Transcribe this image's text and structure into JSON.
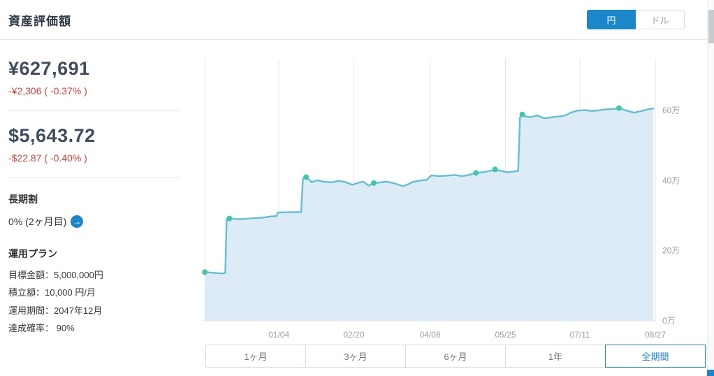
{
  "header": {
    "title": "資産評価額",
    "currency_toggle": {
      "options": [
        "円",
        "ドル"
      ],
      "active": "円"
    }
  },
  "summary": {
    "yen_value": "¥627,691",
    "yen_change": "-¥2,306 ( -0.37% )",
    "usd_value": "$5,643.72",
    "usd_change": "-$22.87 ( -0.40% )"
  },
  "long_term": {
    "heading": "長期割",
    "status": "0% (2ヶ月目)",
    "arrow_icon": "→"
  },
  "plan": {
    "heading": "運用プラン",
    "items": [
      "目標金額：5,000,000円",
      "積立額：10,000 円/月",
      "運用期間：2047年12月",
      "達成確率： 90%"
    ]
  },
  "period_buttons": {
    "options": [
      "1ヶ月",
      "3ヶ月",
      "6ヶ月",
      "1年",
      "全期間"
    ],
    "selected": "全期間"
  },
  "colors": {
    "accent": "#1b87c9",
    "negative": "#e0413a",
    "line": "#5fc0d6",
    "area": "#dcebf5",
    "dot": "#3fc6ad",
    "grid": "#e4e7e9",
    "axis_text": "#9aa1a9"
  },
  "chart_data": {
    "type": "area",
    "unit": "万",
    "ylim": [
      0,
      75
    ],
    "yticks": [
      {
        "value": 0,
        "label": "0万"
      },
      {
        "value": 20,
        "label": "20万"
      },
      {
        "value": 40,
        "label": "40万"
      },
      {
        "value": 60,
        "label": "60万"
      }
    ],
    "xticks": [
      {
        "pct": 17.1,
        "label": "01/04"
      },
      {
        "pct": 33.6,
        "label": "02/20"
      },
      {
        "pct": 50.4,
        "label": "04/08"
      },
      {
        "pct": 67.0,
        "label": "05/25"
      },
      {
        "pct": 83.4,
        "label": "07/11"
      },
      {
        "pct": 100,
        "label": "08/27"
      }
    ],
    "grid_pct": [
      0.8,
      17.1,
      33.6,
      50.4,
      67.0,
      83.4,
      100
    ],
    "points": [
      [
        0.8,
        13.9
      ],
      [
        2.5,
        13.7
      ],
      [
        4.7,
        13.5
      ],
      [
        5.3,
        13.7
      ],
      [
        5.6,
        29.0
      ],
      [
        6.2,
        29.2
      ],
      [
        8.5,
        29.0
      ],
      [
        10.9,
        29.2
      ],
      [
        13.2,
        29.4
      ],
      [
        15.5,
        29.8
      ],
      [
        16.6,
        29.9
      ],
      [
        16.9,
        30.9
      ],
      [
        19.4,
        31.0
      ],
      [
        22.0,
        31.0
      ],
      [
        22.4,
        40.6
      ],
      [
        23.1,
        41.0
      ],
      [
        24.3,
        39.6
      ],
      [
        25.6,
        40.1
      ],
      [
        26.9,
        39.7
      ],
      [
        28.7,
        39.5
      ],
      [
        30.2,
        39.9
      ],
      [
        31.8,
        39.6
      ],
      [
        33.3,
        38.8
      ],
      [
        34.6,
        39.4
      ],
      [
        35.7,
        39.7
      ],
      [
        36.9,
        38.6
      ],
      [
        38.0,
        39.3
      ],
      [
        39.5,
        39.5
      ],
      [
        40.9,
        39.7
      ],
      [
        42.6,
        39.2
      ],
      [
        44.5,
        38.4
      ],
      [
        45.8,
        39.1
      ],
      [
        46.5,
        39.6
      ],
      [
        48.1,
        40.0
      ],
      [
        49.6,
        40.2
      ],
      [
        50.7,
        41.5
      ],
      [
        52.4,
        41.3
      ],
      [
        53.9,
        41.4
      ],
      [
        55.8,
        41.6
      ],
      [
        57.4,
        41.3
      ],
      [
        58.6,
        41.5
      ],
      [
        60.5,
        42.2
      ],
      [
        62.0,
        42.4
      ],
      [
        62.8,
        42.6
      ],
      [
        64.0,
        42.9
      ],
      [
        64.7,
        43.2
      ],
      [
        66.2,
        42.7
      ],
      [
        67.6,
        42.4
      ],
      [
        68.8,
        42.6
      ],
      [
        69.8,
        42.8
      ],
      [
        70.2,
        58.0
      ],
      [
        70.7,
        58.9
      ],
      [
        71.5,
        58.3
      ],
      [
        72.5,
        58.1
      ],
      [
        74.0,
        58.6
      ],
      [
        75.5,
        57.8
      ],
      [
        76.8,
        58.0
      ],
      [
        77.8,
        58.2
      ],
      [
        79.5,
        58.4
      ],
      [
        80.5,
        58.8
      ],
      [
        81.4,
        59.4
      ],
      [
        82.9,
        60.0
      ],
      [
        84.5,
        60.1
      ],
      [
        86.0,
        59.9
      ],
      [
        87.3,
        60.0
      ],
      [
        88.7,
        60.3
      ],
      [
        90.0,
        60.4
      ],
      [
        91.3,
        60.5
      ],
      [
        92.0,
        60.7
      ],
      [
        93.2,
        60.2
      ],
      [
        93.9,
        59.9
      ],
      [
        95.3,
        59.4
      ],
      [
        96.4,
        59.7
      ],
      [
        97.4,
        60.0
      ],
      [
        98.5,
        60.4
      ],
      [
        99.6,
        60.6
      ]
    ],
    "markers": [
      [
        0.8,
        13.9
      ],
      [
        6.2,
        29.2
      ],
      [
        23.1,
        41.0
      ],
      [
        38.0,
        39.3
      ],
      [
        60.5,
        42.2
      ],
      [
        64.7,
        43.2
      ],
      [
        70.7,
        58.9
      ],
      [
        92.0,
        60.7
      ]
    ]
  }
}
